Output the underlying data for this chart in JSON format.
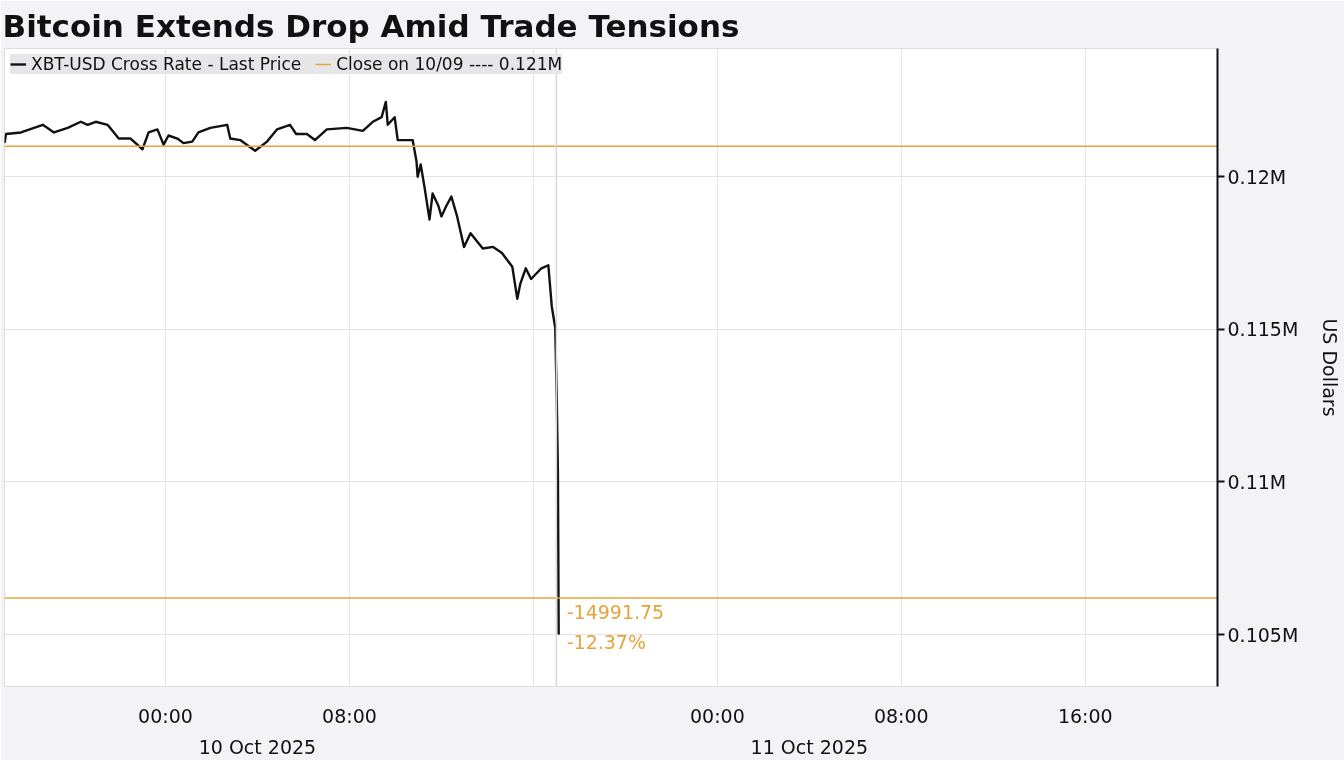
{
  "chart_data": {
    "type": "line",
    "title": "Bitcoin Extends Drop Amid Trade Tensions",
    "ylabel": "US Dollars",
    "x": [
      "2025-10-09T17:00",
      "2025-10-09T17:04",
      "2025-10-09T17:43",
      "2025-10-09T18:17",
      "2025-10-09T18:40",
      "2025-10-09T19:09",
      "2025-10-09T19:45",
      "2025-10-09T20:19",
      "2025-10-09T20:37",
      "2025-10-09T20:58",
      "2025-10-09T21:29",
      "2025-10-09T21:58",
      "2025-10-09T22:29",
      "2025-10-09T23:00",
      "2025-10-09T23:16",
      "2025-10-09T23:39",
      "2025-10-09T23:55",
      "2025-10-10T00:08",
      "2025-10-10T00:31",
      "2025-10-10T00:47",
      "2025-10-10T01:10",
      "2025-10-10T01:26",
      "2025-10-10T01:57",
      "2025-10-10T02:41",
      "2025-10-10T02:49",
      "2025-10-10T03:15",
      "2025-10-10T03:54",
      "2025-10-10T04:25",
      "2025-10-10T04:51",
      "2025-10-10T05:25",
      "2025-10-10T05:41",
      "2025-10-10T06:09",
      "2025-10-10T06:30",
      "2025-10-10T07:01",
      "2025-10-10T07:53",
      "2025-10-10T08:35",
      "2025-10-10T09:01",
      "2025-10-10T09:24",
      "2025-10-10T09:35",
      "2025-10-10T09:40",
      "2025-10-10T09:58",
      "2025-10-10T10:06",
      "2025-10-10T10:45",
      "2025-10-10T10:55",
      "2025-10-10T10:58",
      "2025-10-10T11:06",
      "2025-10-10T11:16",
      "2025-10-10T11:29",
      "2025-10-10T11:37",
      "2025-10-10T11:52",
      "2025-10-10T12:00",
      "2025-10-10T12:13",
      "2025-10-10T12:26",
      "2025-10-10T12:41",
      "2025-10-10T12:59",
      "2025-10-10T13:16",
      "2025-10-10T13:48",
      "2025-10-10T14:15",
      "2025-10-10T14:38",
      "2025-10-10T15:05",
      "2025-10-10T15:18",
      "2025-10-10T15:26",
      "2025-10-10T15:40",
      "2025-10-10T15:54",
      "2025-10-10T16:21",
      "2025-10-10T16:39",
      "2025-10-10T16:48",
      "2025-10-10T16:57",
      "2025-10-10T17:01",
      "2025-10-10T17:04",
      "2025-10-10T17:06"
    ],
    "series": [
      {
        "name": "XBT-USD Cross Rate - Last Price",
        "color": "#111111",
        "values": [
          121100,
          121400,
          121450,
          121600,
          121700,
          121450,
          121600,
          121800,
          121700,
          121800,
          121700,
          121250,
          121250,
          120900,
          121450,
          121550,
          121050,
          121350,
          121250,
          121100,
          121150,
          121450,
          121600,
          121700,
          121250,
          121200,
          120850,
          121150,
          121550,
          121700,
          121400,
          121400,
          121200,
          121550,
          121600,
          121500,
          121800,
          121950,
          122450,
          121700,
          121950,
          121200,
          121200,
          120500,
          120000,
          120400,
          119650,
          118600,
          119450,
          119050,
          118700,
          119050,
          119350,
          118700,
          117700,
          118150,
          117650,
          117700,
          117500,
          117050,
          116000,
          116500,
          117000,
          116650,
          117000,
          117100,
          115750,
          115050,
          112650,
          110300,
          105000
        ]
      }
    ],
    "xlim": [
      "2025-10-09T17:00",
      "2025-10-11T21:45"
    ],
    "xticks": [
      {
        "value": "2025-10-10T00:00",
        "label": "00:00"
      },
      {
        "value": "2025-10-10T08:00",
        "label": "08:00"
      },
      {
        "value": "2025-10-10T16:00",
        "label": null
      },
      {
        "value": "2025-10-11T00:00",
        "label": "00:00"
      },
      {
        "value": "2025-10-11T08:00",
        "label": "08:00"
      },
      {
        "value": "2025-10-11T16:00",
        "label": "16:00"
      }
    ],
    "ylim": [
      103300,
      124200
    ],
    "yticks": [
      {
        "value": 105000,
        "label": "0.105M"
      },
      {
        "value": 110000,
        "label": "0.11M"
      },
      {
        "value": 115000,
        "label": "0.115M"
      },
      {
        "value": 120000,
        "label": "0.12M"
      }
    ],
    "ref_lines": [
      {
        "axis": "y",
        "value": 121000,
        "label": "Close on 10/09 ---- 0.121M",
        "color": "#e8a33a"
      },
      {
        "axis": "y",
        "value": 106200,
        "color": "#e8a33a"
      },
      {
        "axis": "x",
        "value": "2025-10-10T17:00",
        "color": "#d8d8d8"
      }
    ],
    "annotations": [
      "10 Oct 2025",
      "11 Oct 2025",
      {
        "text": "-14991.75",
        "x": "2025-10-10T17:06",
        "y": 105750
      },
      {
        "text": "-12.37%",
        "x": "2025-10-10T17:06",
        "y": 104750
      }
    ],
    "grid": true,
    "legend": "top left",
    "marker": "none",
    "line_style": "solid"
  }
}
